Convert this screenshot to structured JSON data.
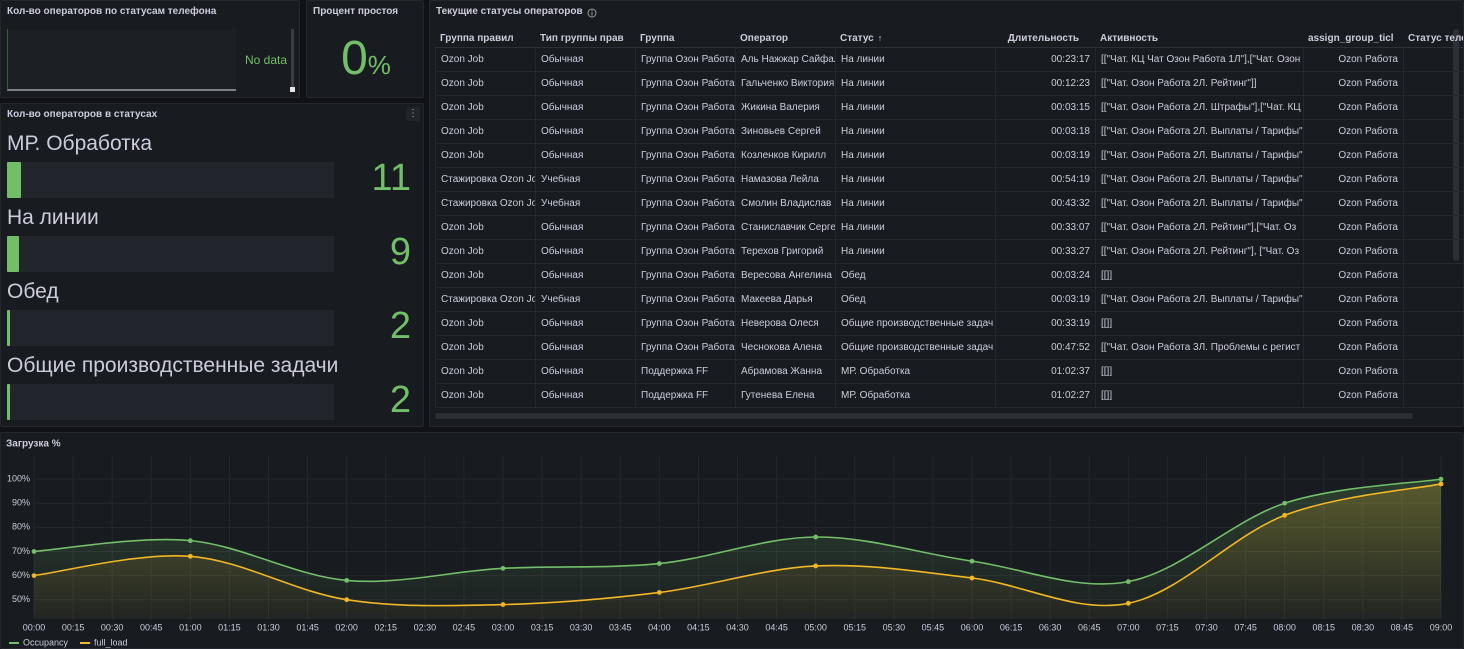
{
  "phone_status_panel": {
    "title": "Кол-во операторов по статусам телефона",
    "message": "No data"
  },
  "idle_panel": {
    "title": "Процент простоя",
    "value": 0,
    "unit": "%"
  },
  "status_panel": {
    "title": "Кол-во операторов в статусах",
    "max": 250,
    "color": "#73bf69",
    "items": [
      {
        "label": "МР. Обработка",
        "value": 11
      },
      {
        "label": "На линии",
        "value": 9
      },
      {
        "label": "Обед",
        "value": 2
      },
      {
        "label": "Общие производственные задачи",
        "value": 2
      }
    ]
  },
  "table_panel": {
    "title": "Текущие статусы операторов",
    "columns": [
      "Группа правил",
      "Тип группы прав",
      "Группа",
      "Оператор",
      "Статус",
      "Длительность",
      "Активность",
      "assign_group_ticl",
      "Статус теле"
    ],
    "rows": [
      [
        "Ozon Job",
        "Обычная",
        "Группа Озон Работа",
        "Аль Нажжар Сайфал",
        "На линии",
        "00:23:17",
        "[[\"Чат. КЦ Чат Озон Работа 1Л\"],[\"Чат. Озон",
        "Ozon Работа"
      ],
      [
        "Ozon Job",
        "Обычная",
        "Группа Озон Работа",
        "Гальченко Виктория",
        "На линии",
        "00:12:23",
        "[[\"Чат. Озон Работа 2Л. Рейтинг\"]]",
        "Ozon Работа"
      ],
      [
        "Ozon Job",
        "Обычная",
        "Группа Озон Работа",
        "Жикина Валерия",
        "На линии",
        "00:03:15",
        "[[\"Чат. Озон Работа 2Л. Штрафы\"],[\"Чат. КЦ",
        "Ozon Работа"
      ],
      [
        "Ozon Job",
        "Обычная",
        "Группа Озон Работа",
        "Зиновьев Сергей",
        "На линии",
        "00:03:18",
        "[[\"Чат. Озон Работа 2Л. Выплаты / Тарифы\"",
        "Ozon Работа"
      ],
      [
        "Ozon Job",
        "Обычная",
        "Группа Озон Работа",
        "Козленков Кирилл",
        "На линии",
        "00:03:19",
        "[[\"Чат. Озон Работа 2Л. Выплаты / Тарифы\"",
        "Ozon Работа"
      ],
      [
        "Стажировка Ozon Jo",
        "Учебная",
        "Группа Озон Работа",
        "Намазова Лейла",
        "На линии",
        "00:54:19",
        "[[\"Чат. Озон Работа 2Л. Выплаты / Тарифы\"",
        "Ozon Работа"
      ],
      [
        "Стажировка Ozon Jo",
        "Учебная",
        "Группа Озон Работа",
        "Смолин Владислав",
        "На линии",
        "00:43:32",
        "[[\"Чат. Озон Работа 2Л. Выплаты / Тарифы\"",
        "Ozon Работа"
      ],
      [
        "Ozon Job",
        "Обычная",
        "Группа Озон Работа",
        "Станиславчик Серге",
        "На линии",
        "00:33:07",
        "[[\"Чат. Озон Работа 2Л. Рейтинг\"],[\"Чат. Оз",
        "Ozon Работа"
      ],
      [
        "Ozon Job",
        "Обычная",
        "Группа Озон Работа",
        "Терехов Григорий",
        "На линии",
        "00:33:27",
        "[[\"Чат. Озон Работа 2Л. Рейтинг\"], [\"Чат. Оз",
        "Ozon Работа"
      ],
      [
        "Ozon Job",
        "Обычная",
        "Группа Озон Работа",
        "Вересова Ангелина",
        "Обед",
        "00:03:24",
        "[[]]",
        "Ozon Работа"
      ],
      [
        "Стажировка Ozon Jo",
        "Учебная",
        "Группа Озон Работа",
        "Макеева Дарья",
        "Обед",
        "00:03:19",
        "[[\"Чат. Озон Работа 2Л. Выплаты / Тарифы\"",
        "Ozon Работа"
      ],
      [
        "Ozon Job",
        "Обычная",
        "Группа Озон Работа",
        "Неверова Олеся",
        "Общие производственные задач",
        "00:33:19",
        "[[]]",
        "Ozon Работа"
      ],
      [
        "Ozon Job",
        "Обычная",
        "Группа Озон Работа",
        "Чеснокова Алена",
        "Общие производственные задач",
        "00:47:52",
        "[[\"Чат. Озон Работа 3Л. Проблемы с регист",
        "Ozon Работа"
      ],
      [
        "Ozon Job",
        "Обычная",
        "Поддержка FF",
        "Абрамова Жанна",
        "МР. Обработка",
        "01:02:37",
        "[[]]",
        "Ozon Работа"
      ],
      [
        "Ozon Job",
        "Обычная",
        "Поддержка FF",
        "Гутенева Елена",
        "МР. Обработка",
        "01:02:27",
        "[[]]",
        "Ozon Работа"
      ]
    ]
  },
  "chart_data": {
    "type": "line",
    "title": "Загрузка %",
    "x": [
      "00:00",
      "01:00",
      "02:00",
      "03:00",
      "04:00",
      "05:00",
      "06:00",
      "07:00",
      "08:00",
      "09:00"
    ],
    "series": [
      {
        "name": "Occupancy",
        "color": "#73bf69",
        "values": [
          70,
          74.5,
          58,
          63,
          65,
          76,
          66,
          57.5,
          90,
          100
        ]
      },
      {
        "name": "full_load",
        "color": "#f2b726",
        "values": [
          60,
          68,
          50,
          48,
          53,
          64,
          59,
          48.5,
          85,
          98
        ]
      }
    ],
    "xlim": [
      "00:00",
      "09:00"
    ],
    "xticks": [
      "00:00",
      "00:15",
      "00:30",
      "00:45",
      "01:00",
      "01:15",
      "01:30",
      "01:45",
      "02:00",
      "02:15",
      "02:30",
      "02:45",
      "03:00",
      "03:15",
      "03:30",
      "03:45",
      "04:00",
      "04:15",
      "04:30",
      "04:45",
      "05:00",
      "05:15",
      "05:30",
      "05:45",
      "06:00",
      "06:15",
      "06:30",
      "06:45",
      "07:00",
      "07:15",
      "07:30",
      "07:45",
      "08:00",
      "08:15",
      "08:30",
      "08:45",
      "09:00"
    ],
    "ylim": [
      42,
      110
    ],
    "yticks": [
      {
        "value": 50,
        "label": "50%"
      },
      {
        "value": 60,
        "label": "60%"
      },
      {
        "value": 70,
        "label": "70%"
      },
      {
        "value": 80,
        "label": "80%"
      },
      {
        "value": 90,
        "label": "90%"
      },
      {
        "value": 100,
        "label": "100%"
      }
    ],
    "grid": true,
    "legend": "bottom-left"
  }
}
